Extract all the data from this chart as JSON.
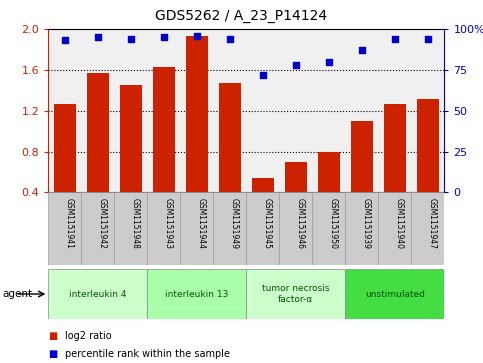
{
  "title": "GDS5262 / A_23_P14124",
  "samples": [
    "GSM1151941",
    "GSM1151942",
    "GSM1151948",
    "GSM1151943",
    "GSM1151944",
    "GSM1151949",
    "GSM1151945",
    "GSM1151946",
    "GSM1151950",
    "GSM1151939",
    "GSM1151940",
    "GSM1151947"
  ],
  "log2_ratio": [
    1.27,
    1.57,
    1.45,
    1.63,
    1.93,
    1.47,
    0.54,
    0.7,
    0.8,
    1.1,
    1.27,
    1.31
  ],
  "percentile": [
    93,
    95,
    94,
    95,
    96,
    94,
    72,
    78,
    80,
    87,
    94,
    94
  ],
  "agents": [
    {
      "label": "interleukin 4",
      "indices": [
        0,
        1,
        2
      ],
      "color": "#ccffcc"
    },
    {
      "label": "interleukin 13",
      "indices": [
        3,
        4,
        5
      ],
      "color": "#aaffaa"
    },
    {
      "label": "tumor necrosis\nfactor-α",
      "indices": [
        6,
        7,
        8
      ],
      "color": "#ccffcc"
    },
    {
      "label": "unstimulated",
      "indices": [
        9,
        10,
        11
      ],
      "color": "#44dd44"
    }
  ],
  "ylim_left": [
    0.4,
    2.0
  ],
  "ylim_right": [
    0,
    100
  ],
  "yticks_left": [
    0.4,
    0.8,
    1.2,
    1.6,
    2.0
  ],
  "yticks_right": [
    0,
    25,
    50,
    75,
    100
  ],
  "bar_color": "#cc2200",
  "dot_color": "#0000cc",
  "bar_bottom": 0.4,
  "bg_color": "#ffffff",
  "plot_bg_color": "#f0f0f0",
  "sample_box_color": "#cccccc",
  "grid_color": "#000000"
}
